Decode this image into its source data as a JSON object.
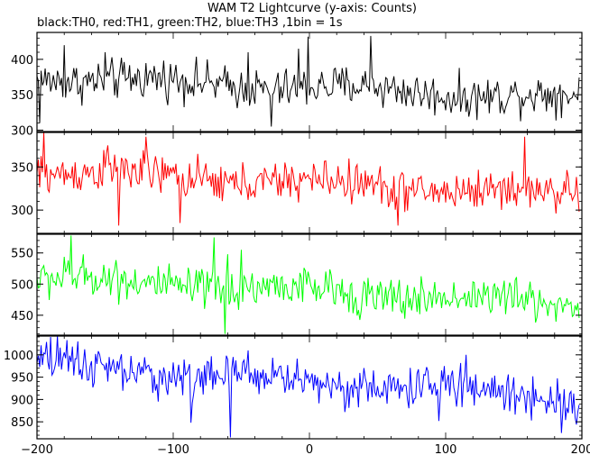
{
  "title": "WAM T2 Lightcurve (y-axis: Counts)",
  "subtitle": "black:TH0, red:TH1, green:TH2, blue:TH3 ,1bin = 1s",
  "chart_data": {
    "type": "line",
    "title": "WAM T2 Lightcurve (y-axis: Counts)",
    "subtitle": "black:TH0, red:TH1, green:TH2, blue:TH3 ,1bin = 1s",
    "xlabel": "",
    "ylabel": "",
    "xlim": [
      -200,
      200
    ],
    "xticks": [
      "−200",
      "−100",
      "0",
      "100",
      "200"
    ],
    "xtick_values": [
      -200,
      -100,
      0,
      100,
      200
    ],
    "grid": false,
    "legend": "none (series described in subtitle)",
    "bin_seconds": 1,
    "panels": [
      {
        "name": "TH0",
        "color": "#000000",
        "ylim": [
          298,
          438
        ],
        "yticks": [
          300,
          350,
          400
        ],
        "mean_start": 375,
        "mean_end": 345,
        "noise_amplitude": 22,
        "notable_spikes": [
          [
            -198,
            310
          ],
          [
            -180,
            420
          ],
          [
            -150,
            410
          ],
          [
            -45,
            410
          ],
          [
            -8,
            415
          ],
          [
            -28,
            305
          ],
          [
            -1,
            432
          ],
          [
            45,
            433
          ]
        ]
      },
      {
        "name": "TH1",
        "color": "#ff0000",
        "ylim": [
          273,
          390
        ],
        "yticks": [
          300,
          350
        ],
        "mean_start": 345,
        "mean_end": 318,
        "noise_amplitude": 18,
        "notable_spikes": [
          [
            -195,
            390
          ],
          [
            -148,
            375
          ],
          [
            -140,
            282
          ],
          [
            -120,
            385
          ],
          [
            -95,
            285
          ],
          [
            65,
            282
          ],
          [
            158,
            385
          ]
        ]
      },
      {
        "name": "TH2",
        "color": "#00ff00",
        "ylim": [
          418,
          580
        ],
        "yticks": [
          450,
          500,
          550
        ],
        "mean_start": 510,
        "mean_end": 468,
        "noise_amplitude": 25,
        "notable_spikes": [
          [
            -175,
            578
          ],
          [
            -62,
            420
          ],
          [
            -70,
            575
          ],
          [
            -50,
            555
          ],
          [
            -60,
            548
          ]
        ]
      },
      {
        "name": "TH3",
        "color": "#0000ff",
        "ylim": [
          812,
          1042
        ],
        "yticks": [
          850,
          900,
          950,
          1000
        ],
        "mean_start": 975,
        "mean_end": 905,
        "noise_amplitude": 35,
        "notable_spikes": [
          [
            -190,
            1040
          ],
          [
            -185,
            1042
          ],
          [
            -170,
            1030
          ],
          [
            -87,
            848
          ],
          [
            -58,
            815
          ],
          [
            -45,
            1010
          ],
          [
            115,
            1000
          ],
          [
            95,
            852
          ],
          [
            185,
            825
          ]
        ]
      }
    ]
  }
}
